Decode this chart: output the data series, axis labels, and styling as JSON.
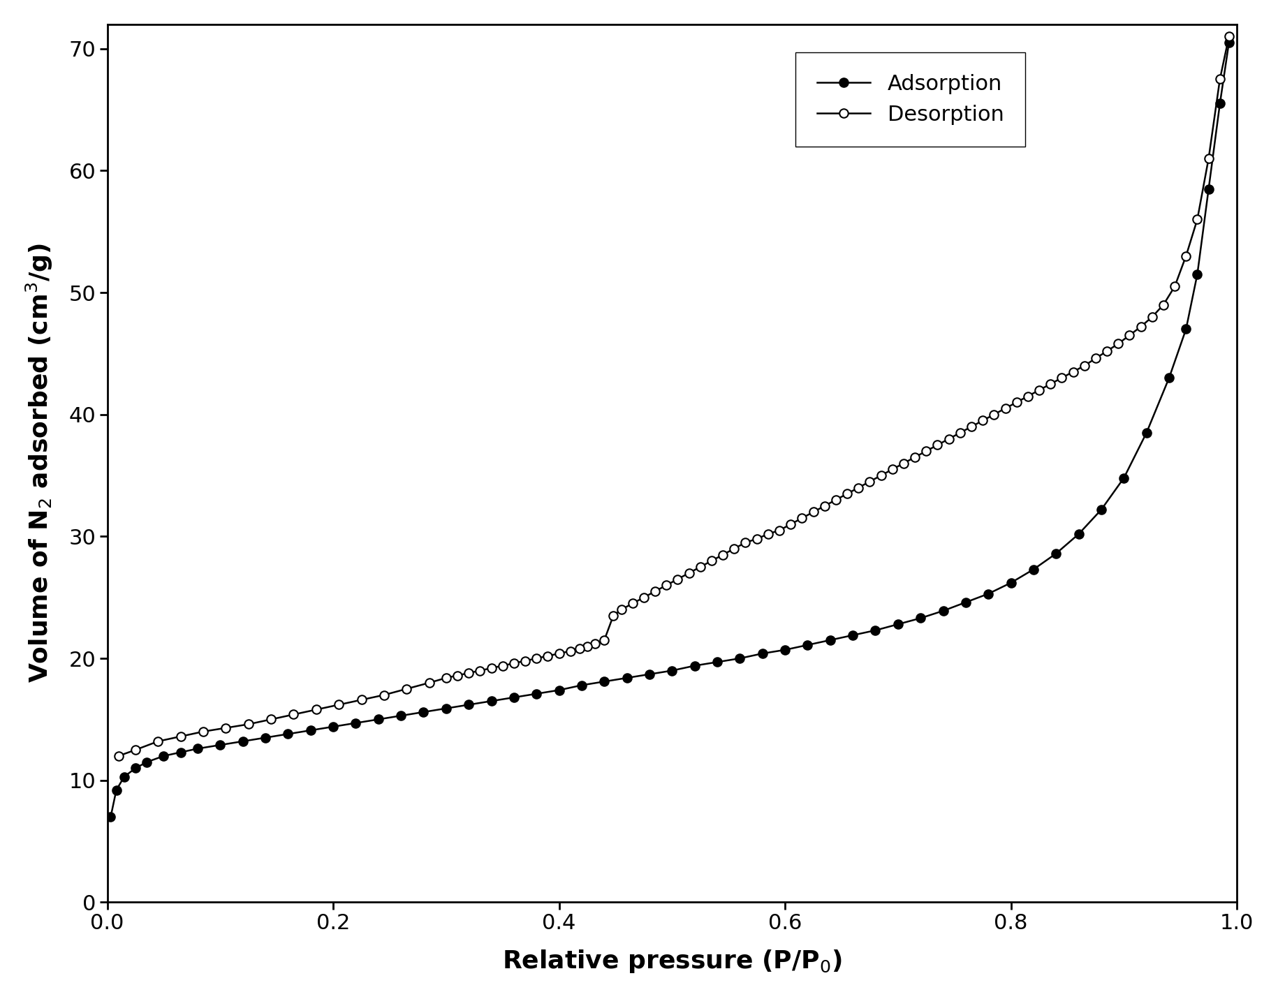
{
  "adsorption_x": [
    0.003,
    0.008,
    0.015,
    0.025,
    0.035,
    0.05,
    0.065,
    0.08,
    0.1,
    0.12,
    0.14,
    0.16,
    0.18,
    0.2,
    0.22,
    0.24,
    0.26,
    0.28,
    0.3,
    0.32,
    0.34,
    0.36,
    0.38,
    0.4,
    0.42,
    0.44,
    0.46,
    0.48,
    0.5,
    0.52,
    0.54,
    0.56,
    0.58,
    0.6,
    0.62,
    0.64,
    0.66,
    0.68,
    0.7,
    0.72,
    0.74,
    0.76,
    0.78,
    0.8,
    0.82,
    0.84,
    0.86,
    0.88,
    0.9,
    0.92,
    0.94,
    0.955,
    0.965,
    0.975,
    0.985,
    0.993
  ],
  "adsorption_y": [
    7.0,
    9.2,
    10.3,
    11.0,
    11.5,
    12.0,
    12.3,
    12.6,
    12.9,
    13.2,
    13.5,
    13.8,
    14.1,
    14.4,
    14.7,
    15.0,
    15.3,
    15.6,
    15.9,
    16.2,
    16.5,
    16.8,
    17.1,
    17.4,
    17.8,
    18.1,
    18.4,
    18.7,
    19.0,
    19.4,
    19.7,
    20.0,
    20.4,
    20.7,
    21.1,
    21.5,
    21.9,
    22.3,
    22.8,
    23.3,
    23.9,
    24.6,
    25.3,
    26.2,
    27.3,
    28.6,
    30.2,
    32.2,
    34.8,
    38.5,
    43.0,
    47.0,
    51.5,
    58.5,
    65.5,
    70.5
  ],
  "desorption_x": [
    0.993,
    0.985,
    0.975,
    0.965,
    0.955,
    0.945,
    0.935,
    0.925,
    0.915,
    0.905,
    0.895,
    0.885,
    0.875,
    0.865,
    0.855,
    0.845,
    0.835,
    0.825,
    0.815,
    0.805,
    0.795,
    0.785,
    0.775,
    0.765,
    0.755,
    0.745,
    0.735,
    0.725,
    0.715,
    0.705,
    0.695,
    0.685,
    0.675,
    0.665,
    0.655,
    0.645,
    0.635,
    0.625,
    0.615,
    0.605,
    0.595,
    0.585,
    0.575,
    0.565,
    0.555,
    0.545,
    0.535,
    0.525,
    0.515,
    0.505,
    0.495,
    0.485,
    0.475,
    0.465,
    0.455,
    0.448,
    0.44,
    0.432,
    0.425,
    0.418,
    0.41,
    0.4,
    0.39,
    0.38,
    0.37,
    0.36,
    0.35,
    0.34,
    0.33,
    0.32,
    0.31,
    0.3,
    0.285,
    0.265,
    0.245,
    0.225,
    0.205,
    0.185,
    0.165,
    0.145,
    0.125,
    0.105,
    0.085,
    0.065,
    0.045,
    0.025,
    0.01
  ],
  "desorption_y": [
    71.0,
    67.5,
    61.0,
    56.0,
    53.0,
    50.5,
    49.0,
    48.0,
    47.2,
    46.5,
    45.8,
    45.2,
    44.6,
    44.0,
    43.5,
    43.0,
    42.5,
    42.0,
    41.5,
    41.0,
    40.5,
    40.0,
    39.5,
    39.0,
    38.5,
    38.0,
    37.5,
    37.0,
    36.5,
    36.0,
    35.5,
    35.0,
    34.5,
    34.0,
    33.5,
    33.0,
    32.5,
    32.0,
    31.5,
    31.0,
    30.5,
    30.2,
    29.8,
    29.5,
    29.0,
    28.5,
    28.0,
    27.5,
    27.0,
    26.5,
    26.0,
    25.5,
    25.0,
    24.5,
    24.0,
    23.5,
    21.5,
    21.2,
    21.0,
    20.8,
    20.6,
    20.4,
    20.2,
    20.0,
    19.8,
    19.6,
    19.4,
    19.2,
    19.0,
    18.8,
    18.6,
    18.4,
    18.0,
    17.5,
    17.0,
    16.6,
    16.2,
    15.8,
    15.4,
    15.0,
    14.6,
    14.3,
    14.0,
    13.6,
    13.2,
    12.5,
    12.0
  ],
  "xlabel": "Relative pressure (P/P$_0$)",
  "ylabel": "Volume of N$_2$ adsorbed (cm$^3$/g)",
  "xlim": [
    0.0,
    1.0
  ],
  "ylim": [
    0,
    72
  ],
  "xticks": [
    0.0,
    0.2,
    0.4,
    0.6,
    0.8,
    1.0
  ],
  "yticks": [
    0,
    10,
    20,
    30,
    40,
    50,
    60,
    70
  ],
  "legend_adsorption": "Adsorption",
  "legend_desorption": "Desorption",
  "line_color": "black",
  "adsorption_markerfacecolor": "black",
  "desorption_markerfacecolor": "white",
  "linewidth": 1.8,
  "markersize": 9,
  "markeredgewidth": 1.5,
  "font_size_label": 26,
  "font_size_tick": 22,
  "font_size_legend": 22,
  "background_color": "#ffffff"
}
